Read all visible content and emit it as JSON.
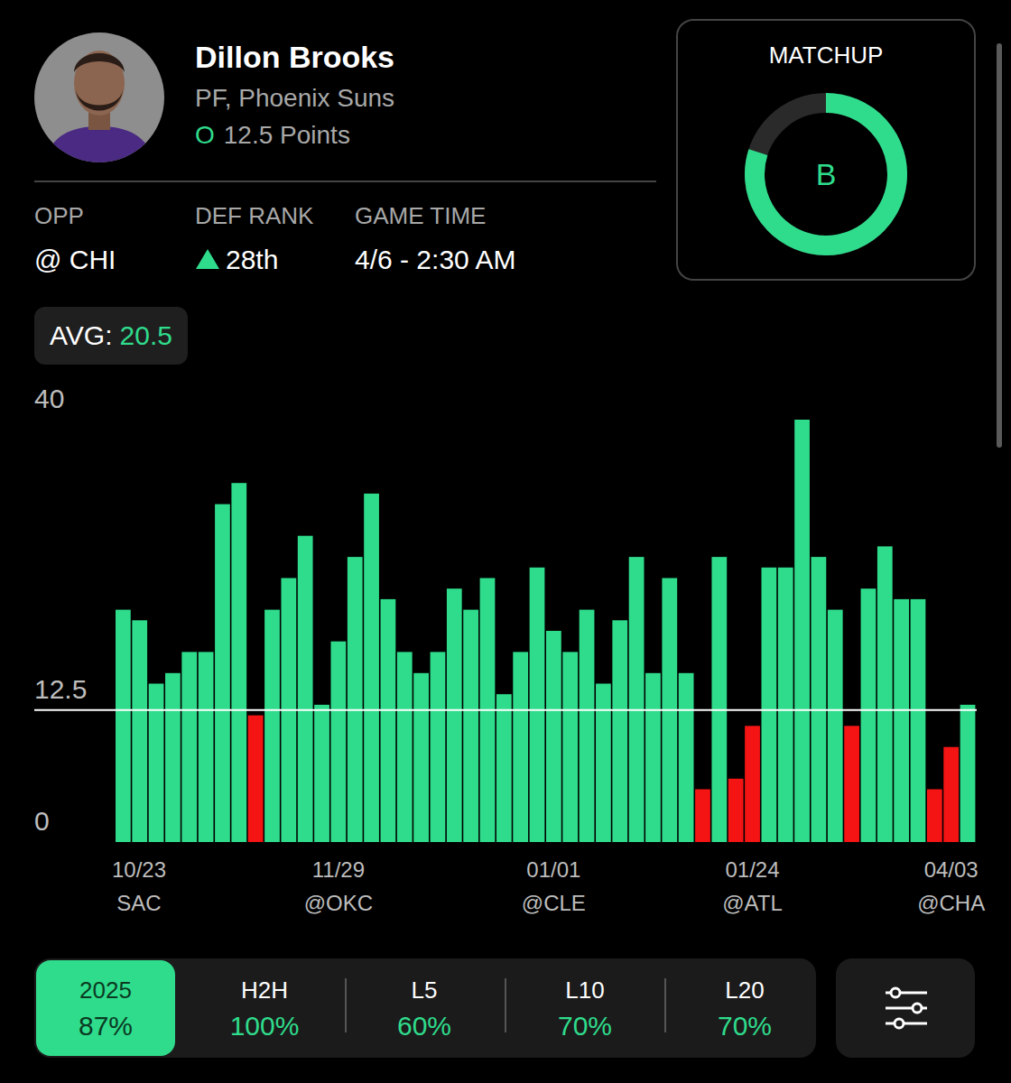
{
  "header": {
    "name": "Dillon Brooks",
    "team": "PF, Phoenix Suns",
    "line_side": "O",
    "line_text": "12.5 Points"
  },
  "info": [
    {
      "label": "OPP",
      "value": "@ CHI"
    },
    {
      "label": "DEF RANK",
      "value": "28th"
    },
    {
      "label": "GAME TIME",
      "value": "4/6 - 2:30 AM"
    }
  ],
  "matchup": {
    "title": "MATCHUP",
    "grade": "B"
  },
  "avg": {
    "label": "AVG:",
    "value": "20.5"
  },
  "chart_data": {
    "type": "bar",
    "categories": [
      "10/23 SAC",
      null,
      null,
      null,
      null,
      null,
      null,
      null,
      null,
      null,
      null,
      null,
      null,
      "11/29 @OKC",
      null,
      null,
      null,
      null,
      null,
      null,
      null,
      null,
      null,
      null,
      null,
      null,
      "01/01 @CLE",
      null,
      null,
      null,
      null,
      null,
      null,
      null,
      null,
      null,
      null,
      null,
      "01/24 @ATL",
      null,
      null,
      null,
      null,
      null,
      null,
      null,
      null,
      null,
      null,
      null,
      "04/03 @CHA",
      null
    ],
    "values": [
      22,
      21,
      15,
      16,
      18,
      18,
      32,
      34,
      12,
      22,
      25,
      29,
      13,
      19,
      27,
      33,
      23,
      18,
      16,
      18,
      24,
      22,
      25,
      14,
      18,
      26,
      20,
      18,
      22,
      15,
      21,
      27,
      16,
      25,
      16,
      5,
      27,
      6,
      11,
      26,
      26,
      40,
      27,
      22,
      11,
      24,
      28,
      23,
      23,
      5,
      9,
      13
    ],
    "colors": [
      "#2fdc8c",
      "#2fdc8c",
      "#2fdc8c",
      "#2fdc8c",
      "#2fdc8c",
      "#2fdc8c",
      "#2fdc8c",
      "#2fdc8c",
      "#f51414",
      "#2fdc8c",
      "#2fdc8c",
      "#2fdc8c",
      "#2fdc8c",
      "#2fdc8c",
      "#2fdc8c",
      "#2fdc8c",
      "#2fdc8c",
      "#2fdc8c",
      "#2fdc8c",
      "#2fdc8c",
      "#2fdc8c",
      "#2fdc8c",
      "#2fdc8c",
      "#2fdc8c",
      "#2fdc8c",
      "#2fdc8c",
      "#2fdc8c",
      "#2fdc8c",
      "#2fdc8c",
      "#2fdc8c",
      "#2fdc8c",
      "#2fdc8c",
      "#2fdc8c",
      "#2fdc8c",
      "#2fdc8c",
      "#f51414",
      "#2fdc8c",
      "#f51414",
      "#f51414",
      "#2fdc8c",
      "#2fdc8c",
      "#2fdc8c",
      "#2fdc8c",
      "#2fdc8c",
      "#f51414",
      "#2fdc8c",
      "#2fdc8c",
      "#2fdc8c",
      "#2fdc8c",
      "#f51414",
      "#f51414",
      "#2fdc8c"
    ],
    "ylim": [
      0,
      40
    ],
    "yticks": [
      0,
      12.5,
      40
    ],
    "threshold": 12.5,
    "grid": false
  },
  "filters": [
    {
      "label": "2025",
      "text": "87%"
    },
    {
      "label": "H2H",
      "text": "100%"
    },
    {
      "label": "L5",
      "text": "60%"
    },
    {
      "label": "L10",
      "text": "70%"
    },
    {
      "label": "L20",
      "text": "70%"
    }
  ]
}
